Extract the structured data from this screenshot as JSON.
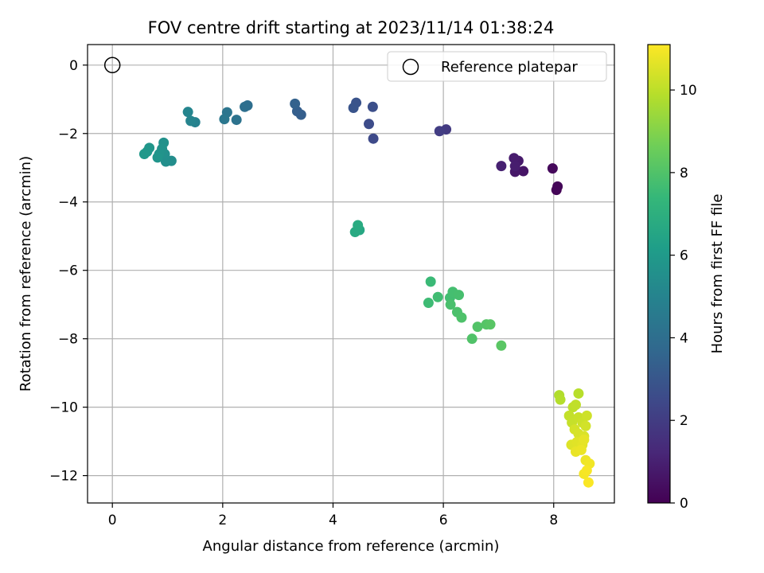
{
  "chart_data": {
    "type": "scatter",
    "title": "FOV centre drift starting at 2023/11/14 01:38:24",
    "xlabel": "Angular distance from reference (arcmin)",
    "ylabel": "Rotation from reference (arcmin)",
    "xlim": [
      -0.45,
      9.1
    ],
    "ylim": [
      -12.8,
      0.6
    ],
    "xticks": [
      0,
      2,
      4,
      6,
      8
    ],
    "yticks": [
      0,
      -2,
      -4,
      -6,
      -8,
      -10,
      -12
    ],
    "grid": true,
    "legend": {
      "placement": "top-right",
      "entries": [
        "Reference platepar"
      ]
    },
    "reference": {
      "x": 0,
      "y": 0
    },
    "colorbar": {
      "label": "Hours from first FF file",
      "range": [
        0,
        11.1
      ],
      "ticks": [
        0,
        2,
        4,
        6,
        8,
        10
      ],
      "colormap": [
        "#440154",
        "#482878",
        "#3e4989",
        "#31688e",
        "#26828e",
        "#1f9e89",
        "#35b779",
        "#6ece58",
        "#b5de2b",
        "#fde725"
      ]
    },
    "points": [
      {
        "x": 8.05,
        "y": -3.65,
        "h": 0.1
      },
      {
        "x": 8.07,
        "y": -3.55,
        "h": 0.15
      },
      {
        "x": 7.98,
        "y": -3.02,
        "h": 0.25
      },
      {
        "x": 7.45,
        "y": -3.1,
        "h": 0.6
      },
      {
        "x": 7.3,
        "y": -3.12,
        "h": 0.7
      },
      {
        "x": 7.36,
        "y": -2.8,
        "h": 0.8
      },
      {
        "x": 7.28,
        "y": -2.72,
        "h": 0.85
      },
      {
        "x": 7.3,
        "y": -2.95,
        "h": 0.9
      },
      {
        "x": 7.05,
        "y": -2.95,
        "h": 1.0
      },
      {
        "x": 6.05,
        "y": -1.88,
        "h": 1.9
      },
      {
        "x": 5.93,
        "y": -1.93,
        "h": 2.0
      },
      {
        "x": 4.73,
        "y": -2.15,
        "h": 2.5
      },
      {
        "x": 4.65,
        "y": -1.72,
        "h": 2.6
      },
      {
        "x": 4.72,
        "y": -1.22,
        "h": 2.7
      },
      {
        "x": 4.42,
        "y": -1.1,
        "h": 2.85
      },
      {
        "x": 4.37,
        "y": -1.25,
        "h": 2.9
      },
      {
        "x": 3.42,
        "y": -1.45,
        "h": 3.3
      },
      {
        "x": 3.35,
        "y": -1.35,
        "h": 3.35
      },
      {
        "x": 3.31,
        "y": -1.13,
        "h": 3.45
      },
      {
        "x": 2.45,
        "y": -1.18,
        "h": 4.0
      },
      {
        "x": 2.4,
        "y": -1.22,
        "h": 4.05
      },
      {
        "x": 2.25,
        "y": -1.6,
        "h": 4.2
      },
      {
        "x": 2.08,
        "y": -1.38,
        "h": 4.3
      },
      {
        "x": 2.03,
        "y": -1.58,
        "h": 4.4
      },
      {
        "x": 1.5,
        "y": -1.67,
        "h": 4.9
      },
      {
        "x": 1.42,
        "y": -1.63,
        "h": 5.0
      },
      {
        "x": 1.37,
        "y": -1.37,
        "h": 5.05
      },
      {
        "x": 1.07,
        "y": -2.8,
        "h": 5.4
      },
      {
        "x": 0.97,
        "y": -2.82,
        "h": 5.5
      },
      {
        "x": 0.95,
        "y": -2.6,
        "h": 5.55
      },
      {
        "x": 0.93,
        "y": -2.27,
        "h": 5.6
      },
      {
        "x": 0.9,
        "y": -2.45,
        "h": 5.65
      },
      {
        "x": 0.85,
        "y": -2.6,
        "h": 5.7
      },
      {
        "x": 0.82,
        "y": -2.7,
        "h": 5.75
      },
      {
        "x": 0.67,
        "y": -2.42,
        "h": 5.8
      },
      {
        "x": 0.63,
        "y": -2.53,
        "h": 5.85
      },
      {
        "x": 0.58,
        "y": -2.6,
        "h": 5.9
      },
      {
        "x": 4.48,
        "y": -4.82,
        "h": 6.6
      },
      {
        "x": 4.4,
        "y": -4.88,
        "h": 6.7
      },
      {
        "x": 4.45,
        "y": -4.68,
        "h": 6.8
      },
      {
        "x": 5.77,
        "y": -6.33,
        "h": 7.5
      },
      {
        "x": 5.73,
        "y": -6.95,
        "h": 7.6
      },
      {
        "x": 5.9,
        "y": -6.78,
        "h": 7.65
      },
      {
        "x": 6.12,
        "y": -6.8,
        "h": 7.7
      },
      {
        "x": 6.17,
        "y": -6.63,
        "h": 7.75
      },
      {
        "x": 6.28,
        "y": -6.72,
        "h": 7.8
      },
      {
        "x": 6.13,
        "y": -7.0,
        "h": 7.85
      },
      {
        "x": 6.25,
        "y": -7.22,
        "h": 7.9
      },
      {
        "x": 6.33,
        "y": -7.38,
        "h": 7.95
      },
      {
        "x": 6.52,
        "y": -8.0,
        "h": 8.0
      },
      {
        "x": 6.62,
        "y": -7.65,
        "h": 8.05
      },
      {
        "x": 6.78,
        "y": -7.58,
        "h": 8.1
      },
      {
        "x": 6.85,
        "y": -7.58,
        "h": 8.15
      },
      {
        "x": 7.05,
        "y": -8.2,
        "h": 8.2
      },
      {
        "x": 8.1,
        "y": -9.65,
        "h": 9.8
      },
      {
        "x": 8.12,
        "y": -9.78,
        "h": 9.85
      },
      {
        "x": 8.45,
        "y": -9.6,
        "h": 9.9
      },
      {
        "x": 8.35,
        "y": -10.0,
        "h": 10.0
      },
      {
        "x": 8.4,
        "y": -9.93,
        "h": 10.05
      },
      {
        "x": 8.28,
        "y": -10.25,
        "h": 10.1
      },
      {
        "x": 8.33,
        "y": -10.45,
        "h": 10.15
      },
      {
        "x": 8.45,
        "y": -10.3,
        "h": 10.2
      },
      {
        "x": 8.52,
        "y": -10.45,
        "h": 10.25
      },
      {
        "x": 8.6,
        "y": -10.25,
        "h": 10.3
      },
      {
        "x": 8.58,
        "y": -10.55,
        "h": 10.35
      },
      {
        "x": 8.38,
        "y": -10.65,
        "h": 10.4
      },
      {
        "x": 8.45,
        "y": -10.78,
        "h": 10.45
      },
      {
        "x": 8.55,
        "y": -10.85,
        "h": 10.5
      },
      {
        "x": 8.32,
        "y": -11.1,
        "h": 10.55
      },
      {
        "x": 8.42,
        "y": -11.02,
        "h": 10.6
      },
      {
        "x": 8.52,
        "y": -11.1,
        "h": 10.65
      },
      {
        "x": 8.55,
        "y": -10.95,
        "h": 10.7
      },
      {
        "x": 8.4,
        "y": -11.3,
        "h": 10.75
      },
      {
        "x": 8.5,
        "y": -11.25,
        "h": 10.8
      },
      {
        "x": 8.58,
        "y": -11.55,
        "h": 10.85
      },
      {
        "x": 8.65,
        "y": -11.65,
        "h": 10.9
      },
      {
        "x": 8.55,
        "y": -11.95,
        "h": 10.95
      },
      {
        "x": 8.6,
        "y": -11.85,
        "h": 11.0
      },
      {
        "x": 8.63,
        "y": -12.2,
        "h": 11.05
      }
    ]
  }
}
